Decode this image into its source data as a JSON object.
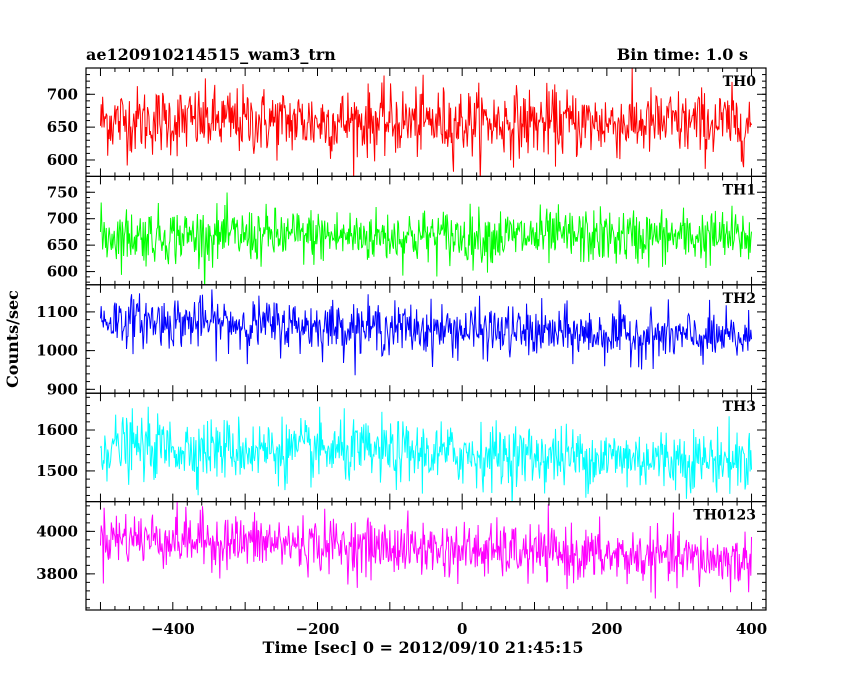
{
  "header": {
    "title": "ae120910214515_wam3_trn",
    "bin_time": "Bin time: 1.0 s"
  },
  "chart_data": {
    "type": "line",
    "title": "ae120910214515_wam3_trn",
    "xlabel": "Time [sec] 0 = 2012/09/10 21:45:15",
    "ylabel": "Counts/sec",
    "xlim": [
      -520,
      420
    ],
    "x_start": -500,
    "x_end": 400,
    "x_step": 1,
    "x_ticks": [
      -400,
      -200,
      0,
      200,
      400
    ],
    "x_tick_labels": [
      "−400",
      "−200",
      "0",
      "200",
      "400"
    ],
    "panels": [
      {
        "name": "TH0",
        "color": "#ff0000",
        "ylim": [
          575,
          740
        ],
        "y_ticks": [
          600,
          650,
          700
        ],
        "y_tick_labels": [
          "600",
          "650",
          "700"
        ],
        "trend_start": 660,
        "trend_end": 655,
        "noise_sd": 26
      },
      {
        "name": "TH1",
        "color": "#00ff00",
        "ylim": [
          575,
          780
        ],
        "y_ticks": [
          600,
          650,
          700,
          750
        ],
        "y_tick_labels": [
          "600",
          "650",
          "700",
          "750"
        ],
        "trend_start": 668,
        "trend_end": 665,
        "noise_sd": 26
      },
      {
        "name": "TH2",
        "color": "#0000ff",
        "ylim": [
          890,
          1170
        ],
        "y_ticks": [
          900,
          1000,
          1100
        ],
        "y_tick_labels": [
          "900",
          "1000",
          "1100"
        ],
        "trend_start": 1080,
        "trend_end": 1030,
        "noise_sd": 33
      },
      {
        "name": "TH3",
        "color": "#00ffff",
        "ylim": [
          1425,
          1690
        ],
        "y_ticks": [
          1500,
          1600
        ],
        "y_tick_labels": [
          "1500",
          "1600"
        ],
        "trend_start": 1560,
        "trend_end": 1525,
        "noise_sd": 38
      },
      {
        "name": "TH0123",
        "color": "#ff00ff",
        "ylim": [
          3630,
          4140
        ],
        "y_ticks": [
          3800,
          4000
        ],
        "y_tick_labels": [
          "3800",
          "4000"
        ],
        "trend_start": 3975,
        "trend_end": 3860,
        "noise_sd": 65
      }
    ],
    "grid": false,
    "legend": "none"
  }
}
